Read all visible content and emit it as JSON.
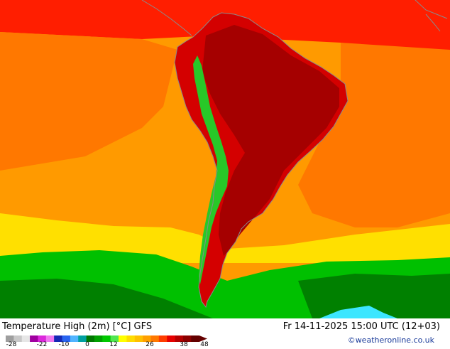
{
  "map": {
    "title": "Temperature High (2m) [°C] GFS",
    "valid_time": "Fr 14-11-2025 15:00 UTC (12+03)",
    "credit": "©weatheronline.co.uk",
    "legend": {
      "tick_labels": [
        "-28",
        "-22",
        "-10",
        "0",
        "12",
        "26",
        "38",
        "48"
      ],
      "colors": [
        "#9e9e9e",
        "#c8c8c8",
        "#e6e6e6",
        "#a000a0",
        "#dc28dc",
        "#f078f0",
        "#1428b4",
        "#2864f0",
        "#50b4ff",
        "#00a0a0",
        "#007800",
        "#00a000",
        "#00c800",
        "#50e650",
        "#ffff00",
        "#ffdc00",
        "#ffc000",
        "#ffa000",
        "#ff7800",
        "#ff3c00",
        "#e60000",
        "#b40000",
        "#8c0000",
        "#640000"
      ]
    },
    "field_colors": {
      "ocean_far": "#ff9a00",
      "ocean_warm": "#ff7800",
      "north": "#ff1e00",
      "interior_hot": "#a50000",
      "land_warm": "#d40000",
      "south_yellow": "#ffe000",
      "south_green": "#00c000",
      "south_dark_green": "#008000",
      "cold_cyan": "#3ce6ff",
      "andes_green": "#28c828",
      "coast": "#8a8a8a"
    }
  }
}
